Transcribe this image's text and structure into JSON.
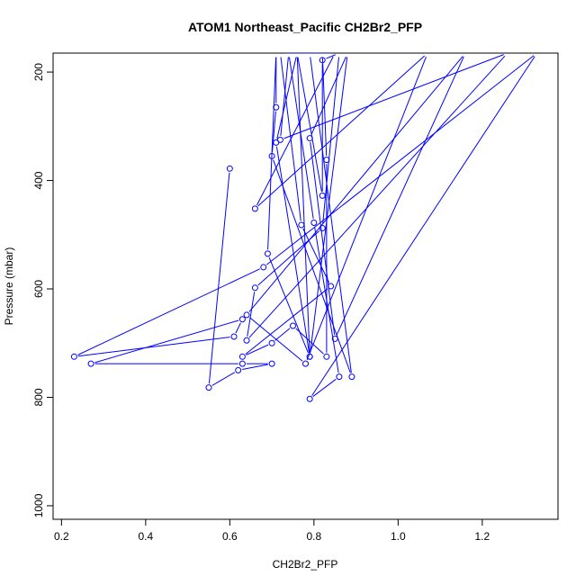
{
  "chart_data": {
    "type": "line",
    "title": "ATOM1 Northeast_Pacific CH2Br2_PFP",
    "xlabel": "CH2Br2_PFP",
    "ylabel": "Pressure (mbar)",
    "xlim": [
      0.18,
      1.38
    ],
    "ylim": [
      1025,
      165
    ],
    "y_reversed": true,
    "x_ticks": [
      0.2,
      0.4,
      0.6,
      0.8,
      1.0,
      1.2
    ],
    "x_tick_labels": [
      "0.2",
      "0.4",
      "0.6",
      "0.8",
      "1.0",
      "1.2"
    ],
    "y_ticks": [
      200,
      400,
      600,
      800,
      1000
    ],
    "y_tick_labels": [
      "200",
      "400",
      "600",
      "800",
      "1000"
    ],
    "series": [
      {
        "color": "#0000ff",
        "marker": "open-circle",
        "points": [
          [
            0.6,
            378
          ],
          [
            0.55,
            782
          ],
          [
            0.62,
            750
          ],
          [
            0.7,
            738
          ],
          [
            0.63,
            738
          ],
          [
            0.27,
            738
          ],
          [
            0.63,
            656
          ],
          [
            0.61,
            688
          ],
          [
            0.23,
            725
          ],
          [
            0.68,
            560
          ],
          [
            1.33,
            165
          ],
          [
            0.79,
            803
          ],
          [
            0.86,
            762
          ],
          [
            0.8,
            478
          ],
          [
            0.74,
            165
          ],
          [
            0.72,
            325
          ],
          [
            1.26,
            165
          ],
          [
            0.64,
            695
          ],
          [
            0.66,
            598
          ],
          [
            0.82,
            488
          ],
          [
            0.86,
            165
          ],
          [
            0.82,
            178
          ],
          [
            0.82,
            428
          ],
          [
            0.76,
            165
          ],
          [
            0.71,
            330
          ],
          [
            0.79,
            725
          ],
          [
            0.69,
            535
          ],
          [
            0.71,
            165
          ],
          [
            0.71,
            265
          ],
          [
            0.7,
            355
          ],
          [
            0.89,
            762
          ],
          [
            0.79,
            165
          ],
          [
            0.82,
            165
          ],
          [
            0.83,
            362
          ],
          [
            0.83,
            725
          ],
          [
            0.75,
            668
          ],
          [
            0.7,
            700
          ],
          [
            0.63,
            725
          ],
          [
            0.84,
            595
          ],
          [
            0.77,
            482
          ],
          [
            0.72,
            165
          ],
          [
            0.85,
            165
          ],
          [
            0.66,
            452
          ],
          [
            1.07,
            165
          ],
          [
            0.78,
            738
          ],
          [
            0.64,
            648
          ],
          [
            1.16,
            165
          ],
          [
            0.85,
            692
          ],
          [
            0.79,
            322
          ],
          [
            0.88,
            165
          ],
          [
            0.79,
            725
          ],
          [
            0.76,
            165
          ]
        ]
      }
    ]
  }
}
